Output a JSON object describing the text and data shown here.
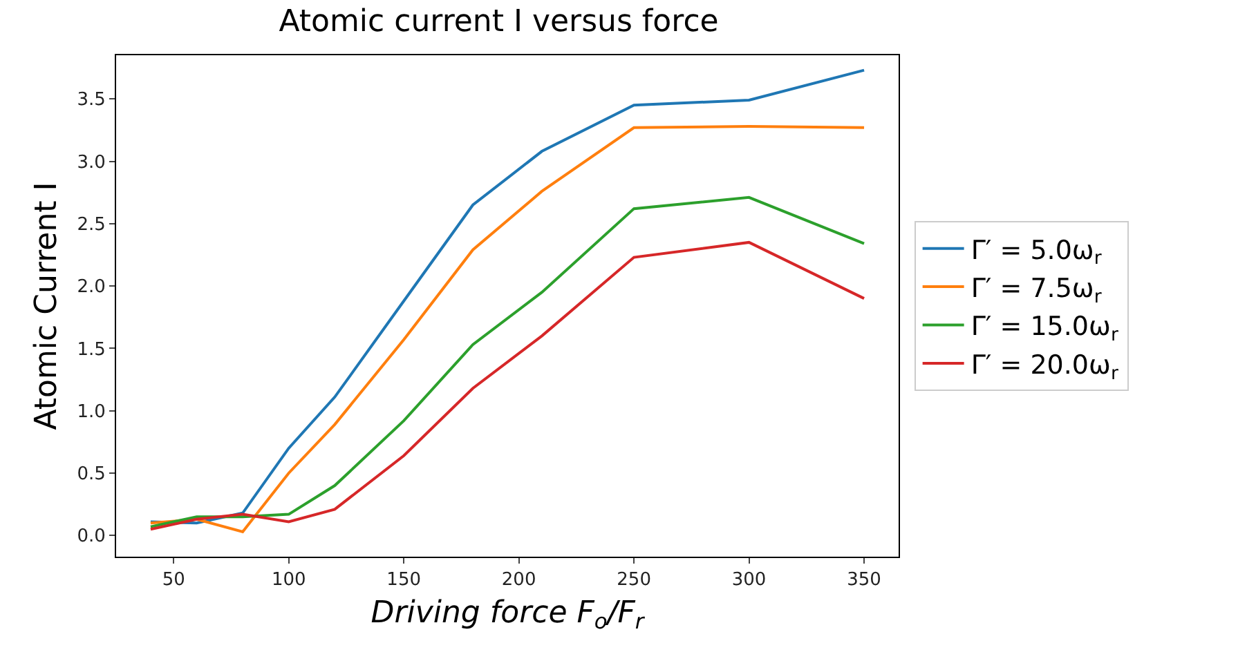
{
  "chart_data": {
    "type": "line",
    "title": "Atomic current I versus force",
    "xlabel": "Driving force F$_{o}$/F$_{r}$",
    "ylabel": "Atomic Current I",
    "x": [
      40,
      60,
      80,
      100,
      120,
      150,
      180,
      210,
      250,
      300,
      350
    ],
    "series": [
      {
        "name": "Γ′ = 5.0ω$_{r}$",
        "color": "#1f77b4",
        "values": [
          0.11,
          0.1,
          0.18,
          0.7,
          1.11,
          1.88,
          2.65,
          3.08,
          3.45,
          3.49,
          3.73
        ]
      },
      {
        "name": "Γ′ = 7.5ω$_{r}$",
        "color": "#ff7f0e",
        "values": [
          0.1,
          0.13,
          0.03,
          0.5,
          0.89,
          1.57,
          2.29,
          2.76,
          3.27,
          3.28,
          3.27
        ]
      },
      {
        "name": "Γ′ = 15.0ω$_{r}$",
        "color": "#2ca02c",
        "values": [
          0.07,
          0.15,
          0.15,
          0.17,
          0.4,
          0.92,
          1.53,
          1.95,
          2.62,
          2.71,
          2.34
        ]
      },
      {
        "name": "Γ′ = 20.0ω$_{r}$",
        "color": "#d62728",
        "values": [
          0.05,
          0.13,
          0.17,
          0.11,
          0.21,
          0.64,
          1.18,
          1.6,
          2.23,
          2.35,
          1.9
        ]
      }
    ],
    "xlim": [
      25,
      365
    ],
    "xticks": [
      50,
      100,
      150,
      200,
      250,
      300,
      350
    ],
    "ylim": [
      -0.17,
      3.85
    ],
    "yticks": [
      {
        "value": 0,
        "label": "0.0"
      },
      {
        "value": 0.5,
        "label": "0.5"
      },
      {
        "value": 1,
        "label": "1.0"
      },
      {
        "value": 1.5,
        "label": "1.5"
      },
      {
        "value": 2,
        "label": "2.0"
      },
      {
        "value": 2.5,
        "label": "2.5"
      },
      {
        "value": 3,
        "label": "3.0"
      },
      {
        "value": 3.5,
        "label": "3.5"
      }
    ],
    "grid": false,
    "legend": "right",
    "marker": "none",
    "line_style": "solid"
  }
}
